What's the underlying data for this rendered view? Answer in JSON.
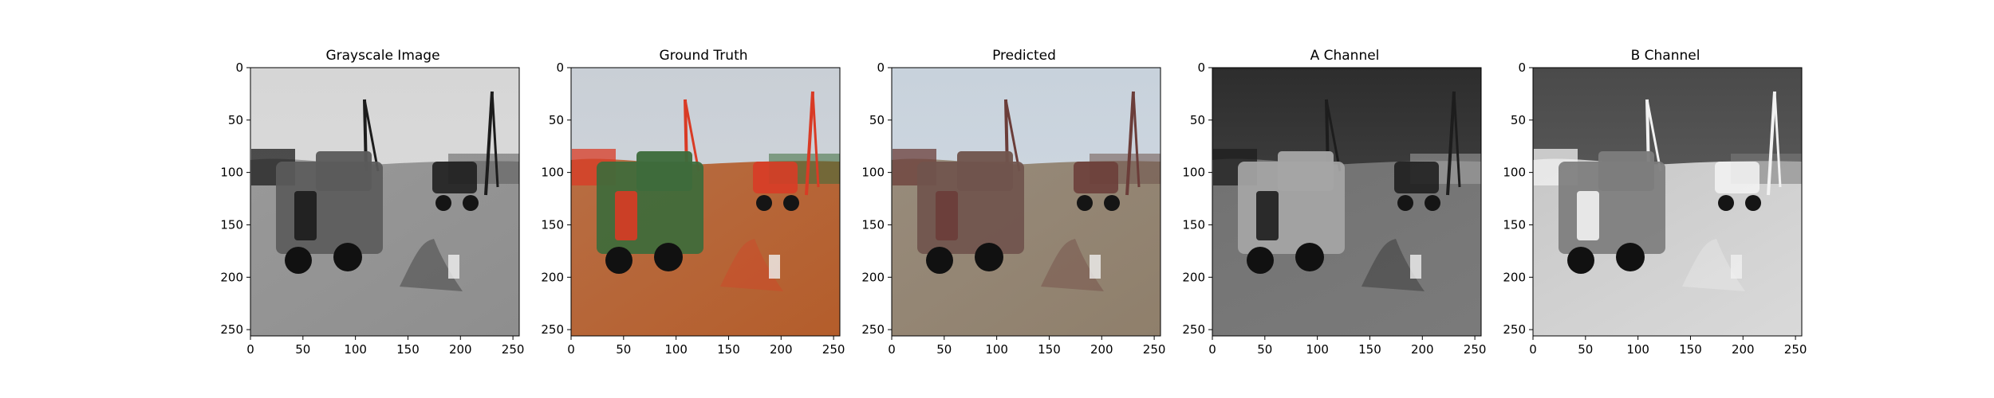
{
  "panels": [
    {
      "title": "Grayscale Image",
      "image": "grayscale-photo",
      "colors": {
        "sky": "#d6d6d6",
        "ground": "#8e8e8e",
        "truck": "#5b5b5b",
        "accent": "#1c1c1c"
      }
    },
    {
      "title": "Ground Truth",
      "image": "color-photo",
      "colors": {
        "sky": "#c9cfd6",
        "ground": "#b45d2b",
        "truck": "#3d6b3b",
        "accent": "#d93b25"
      }
    },
    {
      "title": "Predicted",
      "image": "predicted-photo",
      "colors": {
        "sky": "#c8d2dc",
        "ground": "#8f7f6b",
        "truck": "#70544d",
        "accent": "#6b3d39"
      }
    },
    {
      "title": "A Channel",
      "image": "a-channel-map",
      "colors": {
        "sky": "#2d2d2d",
        "ground": "#7a7a7a",
        "truck": "#a6a6a6",
        "accent": "#1d1d1d"
      }
    },
    {
      "title": "B Channel",
      "image": "b-channel-map",
      "colors": {
        "sky": "#4a4a4a",
        "ground": "#d9d9d9",
        "truck": "#7d7d7d",
        "accent": "#f2f2f2"
      }
    }
  ],
  "axes": {
    "x_ticks": [
      "0",
      "50",
      "100",
      "150",
      "200",
      "250"
    ],
    "y_ticks": [
      "0",
      "50",
      "100",
      "150",
      "200",
      "250"
    ]
  }
}
